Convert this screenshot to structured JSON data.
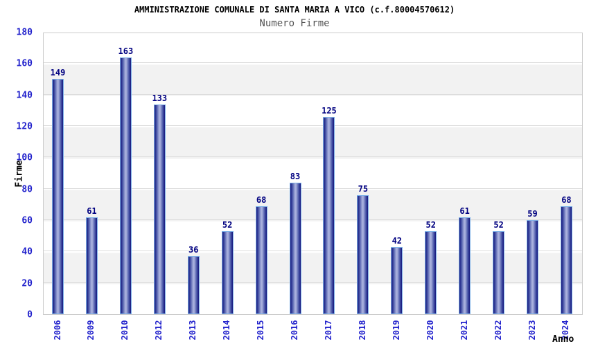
{
  "chart_data": {
    "type": "bar",
    "title": "AMMINISTRAZIONE COMUNALE DI SANTA MARIA A VICO (c.f.80004570612)",
    "subtitle": "Numero Firme",
    "xlabel": "Anno",
    "ylabel": "Firme",
    "categories": [
      "2006",
      "2009",
      "2010",
      "2012",
      "2013",
      "2014",
      "2015",
      "2016",
      "2017",
      "2018",
      "2019",
      "2020",
      "2021",
      "2022",
      "2023",
      "2024"
    ],
    "values": [
      149,
      61,
      163,
      133,
      36,
      52,
      68,
      83,
      125,
      75,
      42,
      52,
      61,
      52,
      59,
      68
    ],
    "ylim": [
      0,
      180
    ],
    "ytick_step": 20,
    "grid": true,
    "legend": "none",
    "band_fill": "alternating-horizontal",
    "colors": {
      "background": "#ffffff",
      "title": "#000000",
      "subtitle": "#555555",
      "axis_label": "#000000",
      "tick_label": "#2222cc",
      "value_label": "#000080",
      "bar_edge_dark": "#15157b",
      "bar_mid": "#3c49a0",
      "bar_highlight": "#a8b0dd",
      "bar_border": "#7fb2e8",
      "band_alt": "#f2f2f2",
      "gridline": "#dcdcdc",
      "plot_border": "#cccccc"
    }
  }
}
